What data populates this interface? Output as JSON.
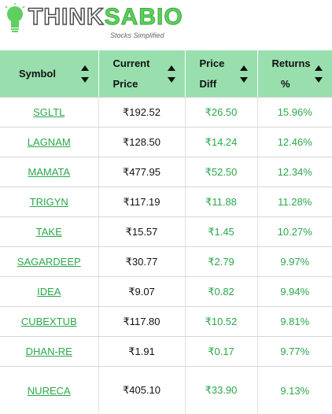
{
  "logo": {
    "think": "THINK",
    "sabio": "SABIO",
    "tagline": "Stocks Simplified",
    "bulb_color": "#5fcf5f"
  },
  "columns": [
    {
      "line1": "Symbol",
      "line2": ""
    },
    {
      "line1": "Current",
      "line2": "Price"
    },
    {
      "line1": "Price",
      "line2": "Diff"
    },
    {
      "line1": "Returns",
      "line2": "%"
    }
  ],
  "rows": [
    {
      "symbol": "SGLTL",
      "price": "₹192.52",
      "diff": "₹26.50",
      "returns": "15.96%"
    },
    {
      "symbol": "LAGNAM",
      "price": "₹128.50",
      "diff": "₹14.24",
      "returns": "12.46%"
    },
    {
      "symbol": "MAMATA",
      "price": "₹477.95",
      "diff": "₹52.50",
      "returns": "12.34%"
    },
    {
      "symbol": "TRIGYN",
      "price": "₹117.19",
      "diff": "₹11.88",
      "returns": "11.28%"
    },
    {
      "symbol": "TAKE",
      "price": "₹15.57",
      "diff": "₹1.45",
      "returns": "10.27%"
    },
    {
      "symbol": "SAGARDEEP",
      "price": "₹30.77",
      "diff": "₹2.79",
      "returns": "9.97%"
    },
    {
      "symbol": "IDEA",
      "price": "₹9.07",
      "diff": "₹0.82",
      "returns": "9.94%"
    },
    {
      "symbol": "CUBEXTUB",
      "price": "₹117.80",
      "diff": "₹10.52",
      "returns": "9.81%"
    },
    {
      "symbol": "DHAN-RE",
      "price": "₹1.91",
      "diff": "₹0.17",
      "returns": "9.77%"
    },
    {
      "symbol": "NURECA",
      "price": "₹405.10",
      "diff": "₹33.90",
      "returns": "9.13%"
    }
  ],
  "colors": {
    "header_bg": "#98dfad",
    "accent_green": "#2aa84a"
  }
}
